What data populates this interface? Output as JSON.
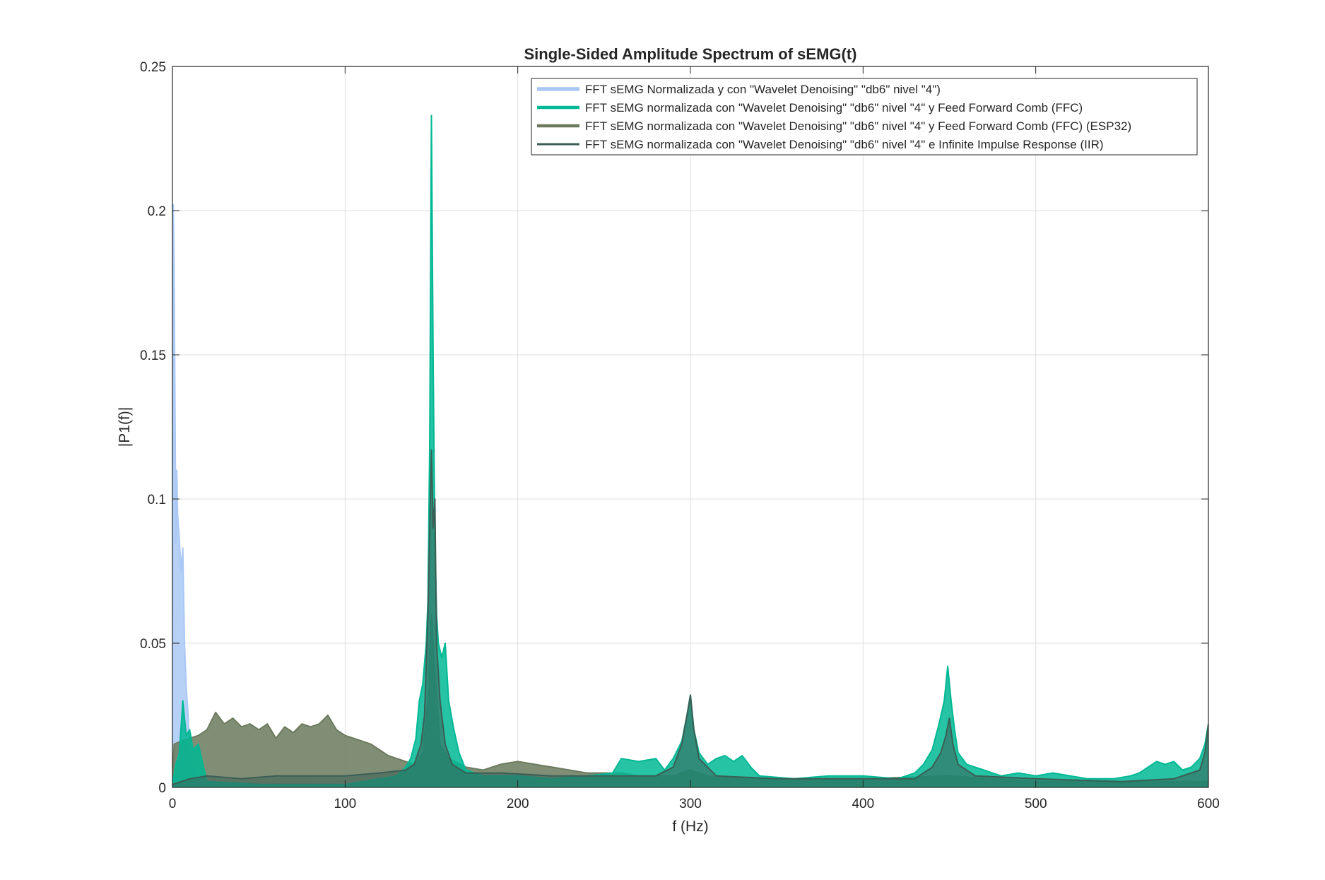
{
  "chart_data": {
    "type": "line",
    "title": "Single-Sided Amplitude Spectrum of sEMG(t)",
    "xlabel": "f (Hz)",
    "ylabel": "|P1(f)|",
    "xlim": [
      0,
      600
    ],
    "ylim": [
      0,
      0.25
    ],
    "grid": true,
    "legend_position": "top-right",
    "xticks": [
      0,
      100,
      200,
      300,
      400,
      500,
      600
    ],
    "xtick_labels": [
      "0",
      "100",
      "200",
      "300",
      "400",
      "500",
      "600"
    ],
    "yticks": [
      0,
      0.05,
      0.1,
      0.15,
      0.2,
      0.25
    ],
    "ytick_labels": [
      "0",
      "0.05",
      "0.1",
      "0.15",
      "0.2",
      "0.25"
    ],
    "series": [
      {
        "name": "FFT sEMG Normalizada y con \"Wavelet Denoising\" \"db6\" nivel \"4\")",
        "color": "#a9c8f5",
        "points": [
          [
            0,
            0.002
          ],
          [
            0.5,
            0.202
          ],
          [
            1,
            0.18
          ],
          [
            1.5,
            0.13
          ],
          [
            2,
            0.085
          ],
          [
            2.5,
            0.11
          ],
          [
            3,
            0.095
          ],
          [
            4,
            0.086
          ],
          [
            5,
            0.075
          ],
          [
            6,
            0.083
          ],
          [
            7,
            0.05
          ],
          [
            8,
            0.035
          ],
          [
            9,
            0.026
          ],
          [
            10,
            0.012
          ],
          [
            12,
            0.006
          ],
          [
            15,
            0.003
          ],
          [
            20,
            0.002
          ],
          [
            40,
            0.0015
          ],
          [
            100,
            0.001
          ],
          [
            600,
            0.0005
          ]
        ]
      },
      {
        "name": "FFT sEMG normalizada con \"Wavelet Denoising\" \"db6\" nivel \"4\" y Feed Forward Comb (FFC)",
        "color": "#00b894",
        "points": [
          [
            0,
            0.001
          ],
          [
            2,
            0.008
          ],
          [
            4,
            0.012
          ],
          [
            6,
            0.03
          ],
          [
            8,
            0.018
          ],
          [
            10,
            0.02
          ],
          [
            12,
            0.013
          ],
          [
            15,
            0.015
          ],
          [
            20,
            0.002
          ],
          [
            50,
            0.001
          ],
          [
            100,
            0.001
          ],
          [
            130,
            0.004
          ],
          [
            135,
            0.007
          ],
          [
            138,
            0.01
          ],
          [
            141,
            0.017
          ],
          [
            143,
            0.03
          ],
          [
            145,
            0.036
          ],
          [
            147,
            0.05
          ],
          [
            148,
            0.065
          ],
          [
            149,
            0.12
          ],
          [
            150,
            0.233
          ],
          [
            151,
            0.15
          ],
          [
            152,
            0.085
          ],
          [
            153,
            0.06
          ],
          [
            154,
            0.05
          ],
          [
            156,
            0.045
          ],
          [
            158,
            0.05
          ],
          [
            160,
            0.03
          ],
          [
            163,
            0.02
          ],
          [
            166,
            0.012
          ],
          [
            170,
            0.006
          ],
          [
            180,
            0.004
          ],
          [
            200,
            0.004
          ],
          [
            220,
            0.003
          ],
          [
            240,
            0.004
          ],
          [
            255,
            0.005
          ],
          [
            260,
            0.01
          ],
          [
            270,
            0.009
          ],
          [
            280,
            0.01
          ],
          [
            285,
            0.006
          ],
          [
            290,
            0.01
          ],
          [
            295,
            0.016
          ],
          [
            298,
            0.025
          ],
          [
            300,
            0.032
          ],
          [
            302,
            0.02
          ],
          [
            305,
            0.012
          ],
          [
            310,
            0.008
          ],
          [
            315,
            0.01
          ],
          [
            320,
            0.011
          ],
          [
            325,
            0.009
          ],
          [
            330,
            0.011
          ],
          [
            335,
            0.007
          ],
          [
            340,
            0.004
          ],
          [
            360,
            0.003
          ],
          [
            380,
            0.004
          ],
          [
            400,
            0.004
          ],
          [
            420,
            0.003
          ],
          [
            430,
            0.005
          ],
          [
            435,
            0.008
          ],
          [
            440,
            0.013
          ],
          [
            444,
            0.022
          ],
          [
            447,
            0.03
          ],
          [
            449,
            0.042
          ],
          [
            451,
            0.03
          ],
          [
            453,
            0.02
          ],
          [
            455,
            0.012
          ],
          [
            460,
            0.008
          ],
          [
            470,
            0.006
          ],
          [
            480,
            0.004
          ],
          [
            490,
            0.005
          ],
          [
            500,
            0.004
          ],
          [
            510,
            0.005
          ],
          [
            520,
            0.004
          ],
          [
            530,
            0.003
          ],
          [
            545,
            0.003
          ],
          [
            555,
            0.004
          ],
          [
            560,
            0.005
          ],
          [
            565,
            0.007
          ],
          [
            570,
            0.009
          ],
          [
            575,
            0.008
          ],
          [
            580,
            0.009
          ],
          [
            585,
            0.006
          ],
          [
            590,
            0.007
          ],
          [
            595,
            0.01
          ],
          [
            598,
            0.015
          ],
          [
            600,
            0.022
          ]
        ]
      },
      {
        "name": "FFT sEMG normalizada con \"Wavelet Denoising\" \"db6\" nivel \"4\" y Feed Forward Comb (FFC) (ESP32)",
        "color": "#6b7a5e",
        "points": [
          [
            0,
            0.002
          ],
          [
            1,
            0.015
          ],
          [
            5,
            0.016
          ],
          [
            10,
            0.017
          ],
          [
            15,
            0.018
          ],
          [
            20,
            0.02
          ],
          [
            25,
            0.026
          ],
          [
            30,
            0.022
          ],
          [
            35,
            0.024
          ],
          [
            40,
            0.021
          ],
          [
            45,
            0.022
          ],
          [
            50,
            0.02
          ],
          [
            55,
            0.022
          ],
          [
            60,
            0.017
          ],
          [
            65,
            0.021
          ],
          [
            70,
            0.019
          ],
          [
            75,
            0.022
          ],
          [
            80,
            0.021
          ],
          [
            85,
            0.022
          ],
          [
            90,
            0.025
          ],
          [
            95,
            0.02
          ],
          [
            100,
            0.018
          ],
          [
            105,
            0.017
          ],
          [
            110,
            0.016
          ],
          [
            115,
            0.015
          ],
          [
            120,
            0.013
          ],
          [
            125,
            0.011
          ],
          [
            130,
            0.01
          ],
          [
            135,
            0.009
          ],
          [
            140,
            0.008
          ],
          [
            145,
            0.012
          ],
          [
            148,
            0.03
          ],
          [
            150,
            0.06
          ],
          [
            152,
            0.04
          ],
          [
            155,
            0.015
          ],
          [
            160,
            0.01
          ],
          [
            170,
            0.007
          ],
          [
            180,
            0.006
          ],
          [
            190,
            0.008
          ],
          [
            200,
            0.009
          ],
          [
            210,
            0.008
          ],
          [
            220,
            0.007
          ],
          [
            230,
            0.006
          ],
          [
            240,
            0.005
          ],
          [
            250,
            0.005
          ],
          [
            260,
            0.005
          ],
          [
            270,
            0.004
          ],
          [
            280,
            0.004
          ],
          [
            290,
            0.004
          ],
          [
            300,
            0.006
          ],
          [
            310,
            0.004
          ],
          [
            330,
            0.003
          ],
          [
            360,
            0.003
          ],
          [
            400,
            0.003
          ],
          [
            450,
            0.004
          ],
          [
            500,
            0.002
          ],
          [
            550,
            0.002
          ],
          [
            600,
            0.002
          ]
        ]
      },
      {
        "name": "FFT sEMG normalizada con \"Wavelet Denoising\" \"db6\" nivel \"4\" e Infinite Impulse Response (IIR)",
        "color": "#3a5e55",
        "points": [
          [
            0,
            0.001
          ],
          [
            5,
            0.002
          ],
          [
            10,
            0.003
          ],
          [
            20,
            0.004
          ],
          [
            40,
            0.003
          ],
          [
            60,
            0.004
          ],
          [
            80,
            0.004
          ],
          [
            100,
            0.004
          ],
          [
            120,
            0.005
          ],
          [
            135,
            0.006
          ],
          [
            140,
            0.008
          ],
          [
            144,
            0.015
          ],
          [
            146,
            0.025
          ],
          [
            148,
            0.06
          ],
          [
            150,
            0.117
          ],
          [
            151,
            0.09
          ],
          [
            152,
            0.1
          ],
          [
            153,
            0.05
          ],
          [
            155,
            0.03
          ],
          [
            158,
            0.015
          ],
          [
            162,
            0.008
          ],
          [
            170,
            0.005
          ],
          [
            190,
            0.005
          ],
          [
            220,
            0.004
          ],
          [
            250,
            0.004
          ],
          [
            280,
            0.004
          ],
          [
            290,
            0.007
          ],
          [
            295,
            0.015
          ],
          [
            298,
            0.025
          ],
          [
            300,
            0.032
          ],
          [
            302,
            0.02
          ],
          [
            305,
            0.01
          ],
          [
            315,
            0.004
          ],
          [
            350,
            0.003
          ],
          [
            400,
            0.003
          ],
          [
            430,
            0.003
          ],
          [
            440,
            0.007
          ],
          [
            445,
            0.012
          ],
          [
            448,
            0.018
          ],
          [
            450,
            0.024
          ],
          [
            452,
            0.015
          ],
          [
            455,
            0.008
          ],
          [
            465,
            0.004
          ],
          [
            500,
            0.003
          ],
          [
            550,
            0.002
          ],
          [
            580,
            0.003
          ],
          [
            595,
            0.006
          ],
          [
            598,
            0.012
          ],
          [
            600,
            0.022
          ]
        ]
      }
    ]
  }
}
